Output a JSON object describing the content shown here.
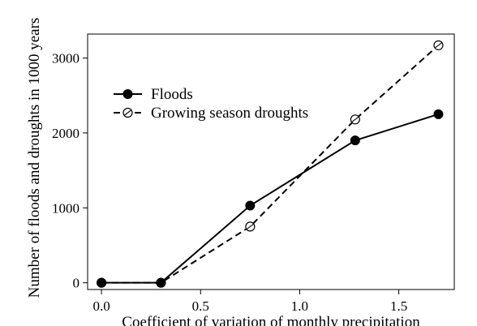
{
  "chart_data": {
    "type": "line",
    "xlabel": "Coefficient of variation of monthly precipitation",
    "ylabel": "Number of floods and droughts in 1000 years",
    "xlim": [
      -0.07,
      1.78
    ],
    "ylim": [
      -90,
      3320
    ],
    "x_ticks": [
      0.0,
      0.5,
      1.0,
      1.5
    ],
    "x_tick_labels": [
      "0.0",
      "0.5",
      "1.0",
      "1.5"
    ],
    "y_ticks": [
      0,
      1000,
      2000,
      3000
    ],
    "y_tick_labels": [
      "0",
      "1000",
      "2000",
      "3000"
    ],
    "grid": false,
    "legend_position": "upper-left",
    "series": [
      {
        "name": "Floods",
        "style": "solid",
        "marker": "filled-circle",
        "color": "#000000",
        "x": [
          0.0,
          0.3,
          0.75,
          1.28,
          1.7
        ],
        "values": [
          0,
          0,
          1030,
          1900,
          2250
        ]
      },
      {
        "name": "Growing season droughts",
        "style": "dashed",
        "marker": "open-circle-slash",
        "color": "#000000",
        "x": [
          0.0,
          0.3,
          0.75,
          1.28,
          1.7
        ],
        "values": [
          0,
          0,
          750,
          2180,
          3170
        ]
      }
    ]
  }
}
